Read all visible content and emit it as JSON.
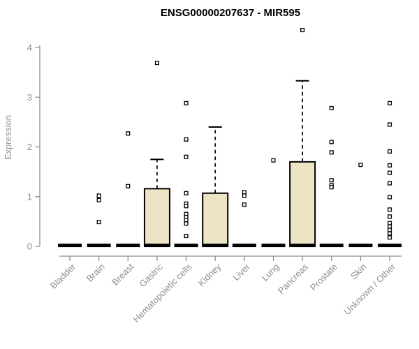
{
  "chart_data": {
    "type": "boxplot",
    "title": "ENSG00000207637 - MIR595",
    "xlabel": "",
    "ylabel": "Expression",
    "ylim": [
      0,
      4.4
    ],
    "yticks": [
      0,
      1,
      2,
      3,
      4
    ],
    "grid": false,
    "legend": null,
    "colors": {
      "box_fill": "#ece4c4",
      "box_stroke": "#000000",
      "axis": "#8e8e8e",
      "tick_label": "#8e8e8e",
      "title": "#000000",
      "outlier_stroke": "#000000",
      "background": "#ffffff"
    },
    "categories": [
      "Bladder",
      "Brain",
      "Breast",
      "Gastric",
      "Hematopoietic cells",
      "Kidney",
      "Liver",
      "Lung",
      "Pancreas",
      "Prostate",
      "Skin",
      "Unknown / Other"
    ],
    "series": [
      {
        "category": "Bladder",
        "q1": 0,
        "median": 0.02,
        "q3": 0.02,
        "whisker_low": 0,
        "whisker_high": 0.02,
        "outliers": []
      },
      {
        "category": "Brain",
        "q1": 0,
        "median": 0.02,
        "q3": 0.02,
        "whisker_low": 0,
        "whisker_high": 0.02,
        "outliers": [
          1.02,
          0.93,
          0.49
        ]
      },
      {
        "category": "Breast",
        "q1": 0,
        "median": 0.02,
        "q3": 0.02,
        "whisker_low": 0,
        "whisker_high": 0.02,
        "outliers": [
          2.27,
          1.21
        ]
      },
      {
        "category": "Gastric",
        "q1": 0,
        "median": 0.02,
        "q3": 1.16,
        "whisker_low": 0,
        "whisker_high": 1.75,
        "outliers": [
          3.69
        ]
      },
      {
        "category": "Hematopoietic cells",
        "q1": 0,
        "median": 0.02,
        "q3": 0.02,
        "whisker_low": 0,
        "whisker_high": 0.02,
        "outliers": [
          2.88,
          2.15,
          1.8,
          1.07,
          0.86,
          0.81,
          0.65,
          0.59,
          0.53,
          0.46,
          0.21
        ]
      },
      {
        "category": "Kidney",
        "q1": 0,
        "median": 0.02,
        "q3": 1.07,
        "whisker_low": 0,
        "whisker_high": 2.4,
        "outliers": []
      },
      {
        "category": "Liver",
        "q1": 0,
        "median": 0.02,
        "q3": 0.02,
        "whisker_low": 0,
        "whisker_high": 0.02,
        "outliers": [
          1.09,
          1.02,
          0.84
        ]
      },
      {
        "category": "Lung",
        "q1": 0,
        "median": 0.02,
        "q3": 0.02,
        "whisker_low": 0,
        "whisker_high": 0.02,
        "outliers": [
          1.73
        ]
      },
      {
        "category": "Pancreas",
        "q1": 0,
        "median": 0.02,
        "q3": 1.7,
        "whisker_low": 0,
        "whisker_high": 3.33,
        "outliers": [
          4.35
        ]
      },
      {
        "category": "Prostate",
        "q1": 0,
        "median": 0.02,
        "q3": 0.02,
        "whisker_low": 0,
        "whisker_high": 0.02,
        "outliers": [
          2.78,
          2.1,
          1.89,
          1.33,
          1.23,
          1.19
        ]
      },
      {
        "category": "Skin",
        "q1": 0,
        "median": 0.02,
        "q3": 0.02,
        "whisker_low": 0,
        "whisker_high": 0.02,
        "outliers": [
          1.64
        ]
      },
      {
        "category": "Unknown / Other",
        "q1": 0,
        "median": 0.02,
        "q3": 0.02,
        "whisker_low": 0,
        "whisker_high": 0.02,
        "outliers": [
          2.88,
          2.45,
          1.91,
          1.63,
          1.48,
          1.27,
          0.99,
          0.74,
          0.6,
          0.47,
          0.4,
          0.33,
          0.26,
          0.18
        ]
      }
    ]
  }
}
